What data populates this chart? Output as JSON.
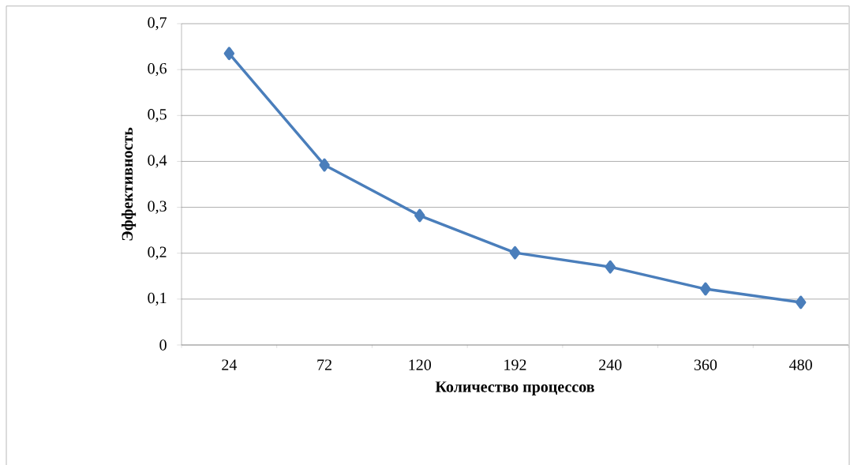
{
  "chart_data": {
    "type": "line",
    "xlabel": "Количество процессов",
    "ylabel": "Эффективность",
    "categories": [
      "24",
      "72",
      "120",
      "192",
      "240",
      "360",
      "480"
    ],
    "series": [
      {
        "color": "#4a7ebb",
        "values": [
          0.635,
          0.392,
          0.282,
          0.201,
          0.17,
          0.122,
          0.093
        ]
      }
    ],
    "ylim": [
      0,
      0.7
    ],
    "yticks": [
      {
        "value": 0,
        "label": "0"
      },
      {
        "value": 0.1,
        "label": "0,1"
      },
      {
        "value": 0.2,
        "label": "0,2"
      },
      {
        "value": 0.3,
        "label": "0,3"
      },
      {
        "value": 0.4,
        "label": "0,4"
      },
      {
        "value": 0.5,
        "label": "0,5"
      },
      {
        "value": 0.6,
        "label": "0,6"
      },
      {
        "value": 0.7,
        "label": "0,7"
      }
    ],
    "grid": "y",
    "marker": "diamond",
    "line_style": "solid"
  }
}
